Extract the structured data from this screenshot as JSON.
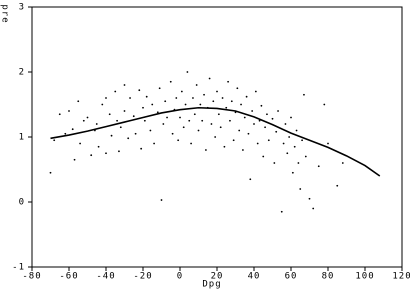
{
  "chart_data": {
    "type": "scatter",
    "x_label": "Dpg",
    "y_label": "pre",
    "xlim": [
      -80,
      120
    ],
    "ylim": [
      -1,
      3
    ],
    "xticks": [
      -80,
      -60,
      -40,
      -20,
      0,
      20,
      40,
      60,
      80,
      100,
      120
    ],
    "yticks": [
      -1,
      0,
      1,
      2,
      3
    ],
    "series": [
      {
        "style": "points",
        "color": "#000000",
        "x": [
          -70,
          -68,
          -65,
          -62,
          -60,
          -58,
          -57,
          -55,
          -54,
          -52,
          -50,
          -48,
          -46,
          -45,
          -44,
          -42,
          -40,
          -40,
          -38,
          -37,
          -35,
          -34,
          -33,
          -32,
          -30,
          -30,
          -28,
          -27,
          -25,
          -24,
          -22,
          -21,
          -20,
          -19,
          -18,
          -16,
          -15,
          -14,
          -12,
          -11,
          -10,
          -9,
          -8,
          -7,
          -5,
          -4,
          -3,
          -2,
          -1,
          0,
          1,
          2,
          3,
          4,
          5,
          6,
          7,
          8,
          9,
          10,
          11,
          12,
          13,
          14,
          15,
          16,
          17,
          18,
          19,
          20,
          21,
          22,
          23,
          24,
          25,
          26,
          27,
          28,
          29,
          30,
          31,
          32,
          33,
          34,
          35,
          36,
          37,
          38,
          39,
          40,
          41,
          42,
          43,
          44,
          45,
          46,
          47,
          48,
          50,
          51,
          52,
          53,
          55,
          56,
          57,
          58,
          59,
          60,
          61,
          62,
          63,
          64,
          65,
          66,
          67,
          68,
          70,
          72,
          75,
          78,
          80,
          85,
          88
        ],
        "values": [
          0.45,
          0.95,
          1.35,
          1.05,
          1.4,
          1.12,
          0.65,
          1.55,
          0.9,
          1.25,
          1.3,
          0.72,
          1.1,
          1.2,
          0.85,
          1.5,
          1.6,
          0.75,
          1.35,
          1.02,
          1.7,
          1.25,
          0.78,
          1.15,
          1.8,
          1.4,
          0.98,
          1.6,
          1.32,
          1.05,
          1.72,
          0.82,
          1.45,
          1.25,
          1.62,
          1.1,
          1.5,
          0.9,
          1.38,
          1.75,
          0.03,
          1.2,
          1.55,
          1.3,
          1.85,
          1.05,
          1.42,
          1.6,
          0.95,
          1.3,
          1.7,
          1.15,
          1.5,
          2.0,
          1.25,
          0.9,
          1.6,
          1.35,
          1.8,
          1.1,
          1.5,
          1.25,
          1.65,
          0.8,
          1.45,
          1.9,
          1.2,
          1.55,
          1.0,
          1.7,
          1.35,
          1.15,
          1.6,
          0.85,
          1.45,
          1.85,
          1.25,
          1.55,
          0.95,
          1.38,
          1.75,
          1.1,
          1.5,
          0.8,
          1.3,
          1.62,
          1.05,
          0.35,
          1.4,
          1.2,
          1.7,
          0.9,
          1.25,
          1.48,
          0.7,
          1.15,
          1.35,
          0.95,
          1.28,
          0.6,
          1.08,
          1.4,
          -0.15,
          0.9,
          1.2,
          0.75,
          1.0,
          1.3,
          0.45,
          0.85,
          1.1,
          0.6,
          0.2,
          0.95,
          1.65,
          0.7,
          0.05,
          -0.1,
          0.55,
          1.5,
          0.9,
          0.25,
          0.6
        ]
      },
      {
        "style": "line",
        "color": "#000000",
        "x": [
          -70,
          -60,
          -50,
          -40,
          -30,
          -20,
          -10,
          0,
          10,
          20,
          30,
          40,
          50,
          60,
          70,
          80,
          90,
          100,
          108
        ],
        "values": [
          0.98,
          1.03,
          1.09,
          1.16,
          1.23,
          1.3,
          1.37,
          1.42,
          1.45,
          1.44,
          1.4,
          1.31,
          1.19,
          1.06,
          0.95,
          0.84,
          0.71,
          0.56,
          0.4
        ]
      }
    ]
  }
}
